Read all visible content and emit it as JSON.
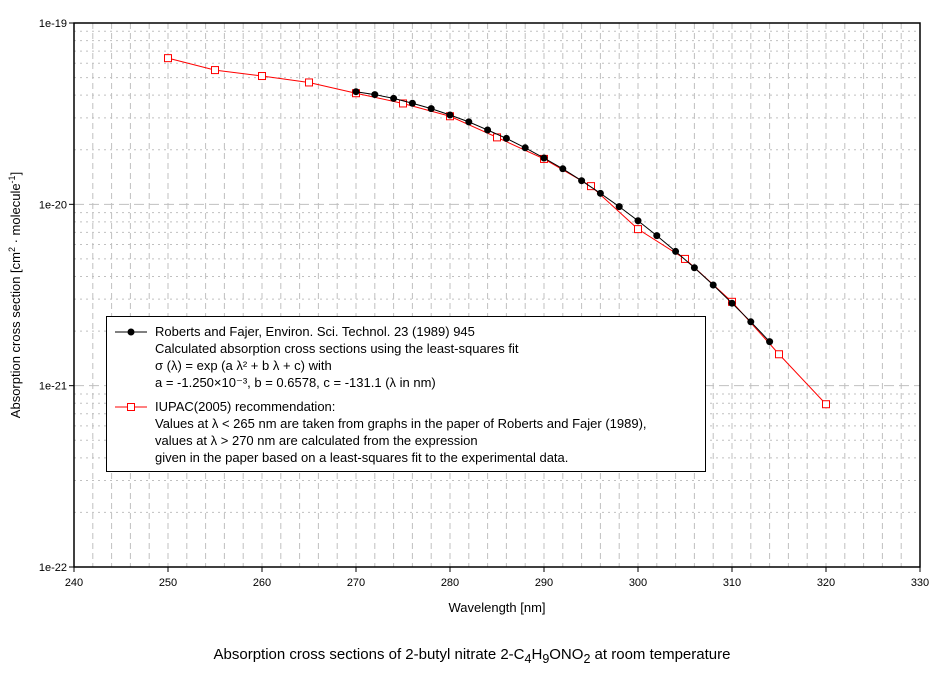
{
  "chart_data": {
    "type": "line",
    "title": "Absorption cross sections of 2-butyl nitrate 2-C4H9ONO2 at room temperature",
    "caption": {
      "pre": "Absorption cross sections of 2-butyl nitrate 2-C",
      "s1": "4",
      "m1": "H",
      "s2": "9",
      "m2": "ONO",
      "s3": "2",
      "post": " at room temperature"
    },
    "xlabel": "Wavelength [nm]",
    "ylabel": {
      "pre": "Absorption cross section [cm",
      "sup1": "2",
      "mid": " · molecule",
      "sup2": "-1",
      "post": "]"
    },
    "xlim": [
      240,
      330
    ],
    "ylim": [
      1e-22,
      1e-19
    ],
    "yscale": "log",
    "xticks": [
      "240",
      "250",
      "260",
      "270",
      "280",
      "290",
      "300",
      "310",
      "320",
      "330"
    ],
    "yticks": [
      "1e-22",
      "1e-21",
      "1e-20",
      "1e-19"
    ],
    "grid": true,
    "legend_position": "lower-left",
    "series": [
      {
        "name": "Roberts and Fajer, Environ. Sci. Technol. 23 (1989) 945",
        "lines": [
          "Roberts and Fajer, Environ. Sci. Technol. 23 (1989) 945",
          "Calculated absorption cross sections using the least-squares fit",
          "σ (λ) = exp (a λ² + b λ + c) with",
          "a = -1.250×10⁻³, b = 0.6578, c = -131.1 (λ in nm)"
        ],
        "color": "#000000",
        "marker": "filled-circle",
        "x": [
          270,
          272,
          274,
          276,
          278,
          280,
          282,
          284,
          286,
          288,
          290,
          292,
          294,
          296,
          298,
          300,
          302,
          304,
          306,
          308,
          310,
          312,
          314
        ],
        "y": [
          4.18e-20,
          4.03e-20,
          3.84e-20,
          3.61e-20,
          3.37e-20,
          3.11e-20,
          2.85e-20,
          2.57e-20,
          2.31e-20,
          2.05e-20,
          1.8e-20,
          1.57e-20,
          1.35e-20,
          1.15e-20,
          9.71e-21,
          8.12e-21,
          6.72e-21,
          5.5e-21,
          4.47e-21,
          3.59e-21,
          2.85e-21,
          2.25e-21,
          1.75e-21
        ]
      },
      {
        "name": "IUPAC(2005) recommendation:",
        "lines": [
          "IUPAC(2005) recommendation:",
          "Values at λ < 265 nm are taken from graphs in the paper of Roberts and Fajer (1989),",
          "values at λ > 270 nm are calculated from the expression",
          "given in the paper based on a least-squares fit to the experimental data."
        ],
        "color": "#ff0000",
        "marker": "open-square",
        "x": [
          250,
          255,
          260,
          265,
          270,
          275,
          280,
          285,
          290,
          295,
          300,
          305,
          310,
          315,
          320
        ],
        "y": [
          6.4e-20,
          5.5e-20,
          5.1e-20,
          4.7e-20,
          4.1e-20,
          3.6e-20,
          3.06e-20,
          2.34e-20,
          1.78e-20,
          1.26e-20,
          7.3e-21,
          5e-21,
          2.9e-21,
          1.49e-21,
          7.9e-22
        ]
      }
    ]
  }
}
